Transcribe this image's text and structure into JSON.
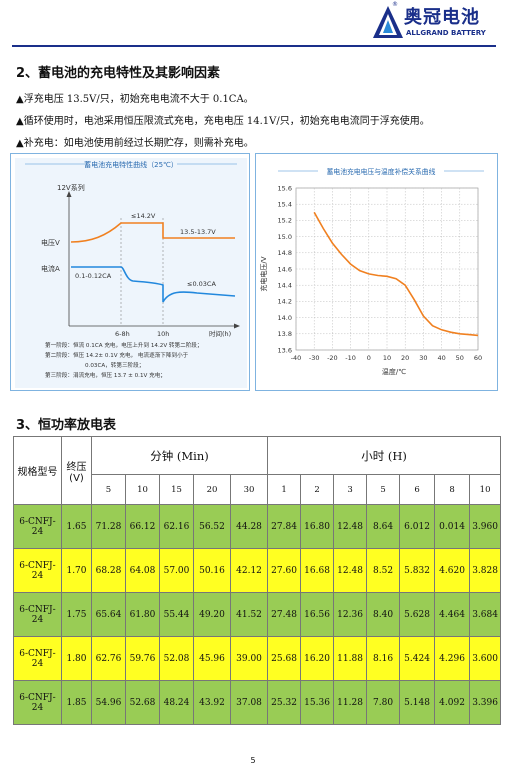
{
  "header": {
    "logo_cn": "奥冠电池",
    "logo_en": "ALLGRAND BATTERY",
    "reg_mark": "®",
    "brand_color": "#1a2f8a"
  },
  "section2": {
    "title": "2、蓄电池的充电特性及其影响因素",
    "bullets": [
      "▲浮充电压 13.5V/只，初始充电电流不大于 0.1CA。",
      "▲循环使用时，电池采用恒压限流式充电，充电电压 14.1V/只，初始充电电流同于浮充使用。",
      "▲补充电：如电池使用前经过长期贮存，则需补充电。"
    ]
  },
  "chart_data": [
    {
      "type": "line",
      "title": "蓄电池充电特性曲线（25℃）",
      "series_label_top": "12V系列",
      "y_labels": [
        "电压V",
        "电流A"
      ],
      "x_labels": [
        "6-8h",
        "10h",
        "时间(h)"
      ],
      "annotations": [
        "≤14.2V",
        "13.5-13.7V",
        "0.1-0.12CA",
        "≤0.03CA"
      ],
      "notes": [
        "第一阶段：恒流 0.1CA 充电，电压上升到 14.2V 转第二阶段；",
        "第二阶段：恒压 14.2± 0.1V 充电，   电流逐渐下降到小于",
        "0.03CA，转第三阶段；",
        "第三阶段：涓流充电，恒压 13.7 ± 0.1V 充电；"
      ],
      "line_color": "#f08020",
      "current_color": "#2288dd"
    },
    {
      "type": "line",
      "title": "蓄电池充电电压与温度补偿关系曲线",
      "xlabel": "温度/℃",
      "ylabel": "充电电压/V",
      "xlim": [
        -40,
        60
      ],
      "ylim": [
        13.6,
        15.6
      ],
      "x_ticks": [
        "-40",
        "-30",
        "-20",
        "-10",
        "0",
        "10",
        "20",
        "30",
        "40",
        "50",
        "60"
      ],
      "y_ticks": [
        "15.6",
        "15.4",
        "15.2",
        "15.0",
        "14.8",
        "14.6",
        "14.4",
        "14.2",
        "14.0",
        "13.8",
        "13.6"
      ],
      "grid": true,
      "series": [
        {
          "x": [
            -30,
            -25,
            -20,
            -15,
            -10,
            -5,
            0,
            5,
            10,
            15,
            20,
            25,
            30,
            35,
            40,
            45,
            50,
            55,
            60
          ],
          "values": [
            15.3,
            15.1,
            14.92,
            14.78,
            14.66,
            14.58,
            14.54,
            14.52,
            14.51,
            14.48,
            14.4,
            14.22,
            14.02,
            13.9,
            13.85,
            13.82,
            13.8,
            13.79,
            13.78
          ]
        }
      ],
      "line_color": "#f08020"
    }
  ],
  "section3": {
    "title": "3、恒功率放电表"
  },
  "table": {
    "col_model": "规格型号",
    "col_endv_line1": "终压",
    "col_endv_line2": "(V)",
    "group_min": "分钟 (Min)",
    "group_hour": "小时 (H)",
    "min_cols": [
      "5",
      "10",
      "15",
      "20",
      "30"
    ],
    "hour_cols": [
      "1",
      "2",
      "3",
      "5",
      "6",
      "8",
      "10"
    ],
    "row_colors": [
      "#99cc55",
      "#ffff22"
    ],
    "rows": [
      {
        "model": "6-CNFJ-24",
        "endv": "1.65",
        "vals": [
          "71.28",
          "66.12",
          "62.16",
          "56.52",
          "44.28",
          "27.84",
          "16.80",
          "12.48",
          "8.64",
          "6.012",
          "0.014",
          "3.960"
        ]
      },
      {
        "model": "6-CNFJ-24",
        "endv": "1.70",
        "vals": [
          "68.28",
          "64.08",
          "57.00",
          "50.16",
          "42.12",
          "27.60",
          "16.68",
          "12.48",
          "8.52",
          "5.832",
          "4.620",
          "3.828"
        ]
      },
      {
        "model": "6-CNFJ-24",
        "endv": "1.75",
        "vals": [
          "65.64",
          "61.80",
          "55.44",
          "49.20",
          "41.52",
          "27.48",
          "16.56",
          "12.36",
          "8.40",
          "5.628",
          "4.464",
          "3.684"
        ]
      },
      {
        "model": "6-CNFJ-24",
        "endv": "1.80",
        "vals": [
          "62.76",
          "59.76",
          "52.08",
          "45.96",
          "39.00",
          "25.68",
          "16.20",
          "11.88",
          "8.16",
          "5.424",
          "4.296",
          "3.600"
        ]
      },
      {
        "model": "6-CNFJ-24",
        "endv": "1.85",
        "vals": [
          "54.96",
          "52.68",
          "48.24",
          "43.92",
          "37.08",
          "25.32",
          "15.36",
          "11.28",
          "7.80",
          "5.148",
          "4.092",
          "3.396"
        ]
      }
    ]
  },
  "footer": {
    "page_number": "5"
  }
}
